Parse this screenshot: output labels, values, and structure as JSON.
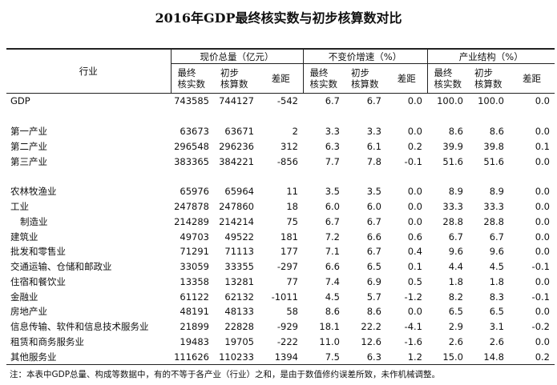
{
  "title": "2016年GDP最终核实数与初步核算数对比",
  "headers": {
    "industry": "行业",
    "group1": "现价总量（亿元）",
    "group2": "不变价增速（%）",
    "group3": "产业结构（%）",
    "final_line1": "最终",
    "final_line2": "核实数",
    "prelim_line1": "初步",
    "prelim_line2": "核算数",
    "diff": "差距"
  },
  "rows": [
    {
      "name": "GDP",
      "v": [
        "743585",
        "744127",
        "-542",
        "6.7",
        "6.7",
        "0.0",
        "100.0",
        "100.0",
        "0.0"
      ]
    },
    {
      "name": "第一产业",
      "v": [
        "63673",
        "63671",
        "2",
        "3.3",
        "3.3",
        "0.0",
        "8.6",
        "8.6",
        "0.0"
      ]
    },
    {
      "name": "第二产业",
      "v": [
        "296548",
        "296236",
        "312",
        "6.3",
        "6.1",
        "0.2",
        "39.9",
        "39.8",
        "0.1"
      ]
    },
    {
      "name": "第三产业",
      "v": [
        "383365",
        "384221",
        "-856",
        "7.7",
        "7.8",
        "-0.1",
        "51.6",
        "51.6",
        "0.0"
      ]
    },
    {
      "name": "农林牧渔业",
      "v": [
        "65976",
        "65964",
        "11",
        "3.5",
        "3.5",
        "0.0",
        "8.9",
        "8.9",
        "0.0"
      ]
    },
    {
      "name": "工业",
      "v": [
        "247878",
        "247860",
        "18",
        "6.0",
        "6.0",
        "0.0",
        "33.3",
        "33.3",
        "0.0"
      ]
    },
    {
      "name": "制造业",
      "v": [
        "214289",
        "214214",
        "75",
        "6.7",
        "6.7",
        "0.0",
        "28.8",
        "28.8",
        "0.0"
      ]
    },
    {
      "name": "建筑业",
      "v": [
        "49703",
        "49522",
        "181",
        "7.2",
        "6.6",
        "0.6",
        "6.7",
        "6.7",
        "0.0"
      ]
    },
    {
      "name": "批发和零售业",
      "v": [
        "71291",
        "71113",
        "177",
        "7.1",
        "6.7",
        "0.4",
        "9.6",
        "9.6",
        "0.0"
      ]
    },
    {
      "name": "交通运输、仓储和邮政业",
      "v": [
        "33059",
        "33355",
        "-297",
        "6.6",
        "6.5",
        "0.1",
        "4.4",
        "4.5",
        "-0.1"
      ]
    },
    {
      "name": "住宿和餐饮业",
      "v": [
        "13358",
        "13281",
        "77",
        "7.4",
        "6.9",
        "0.5",
        "1.8",
        "1.8",
        "0.0"
      ]
    },
    {
      "name": "金融业",
      "v": [
        "61122",
        "62132",
        "-1011",
        "4.5",
        "5.7",
        "-1.2",
        "8.2",
        "8.3",
        "-0.1"
      ]
    },
    {
      "name": "房地产业",
      "v": [
        "48191",
        "48133",
        "58",
        "8.6",
        "8.6",
        "0.0",
        "6.5",
        "6.5",
        "0.0"
      ]
    },
    {
      "name": "信息传输、软件和信息技术服务业",
      "v": [
        "21899",
        "22828",
        "-929",
        "18.1",
        "22.2",
        "-4.1",
        "2.9",
        "3.1",
        "-0.2"
      ]
    },
    {
      "name": "租赁和商务服务业",
      "v": [
        "19483",
        "19705",
        "-222",
        "11.0",
        "12.6",
        "-1.6",
        "2.6",
        "2.6",
        "0.0"
      ]
    },
    {
      "name": "其他服务业",
      "v": [
        "111626",
        "110233",
        "1394",
        "7.5",
        "6.3",
        "1.2",
        "15.0",
        "14.8",
        "0.2"
      ]
    }
  ],
  "note": "注：本表中GDP总量、构成等数据中，有的不等于各产业（行业）之和，是由于数值修约误差所致，未作机械调整。"
}
